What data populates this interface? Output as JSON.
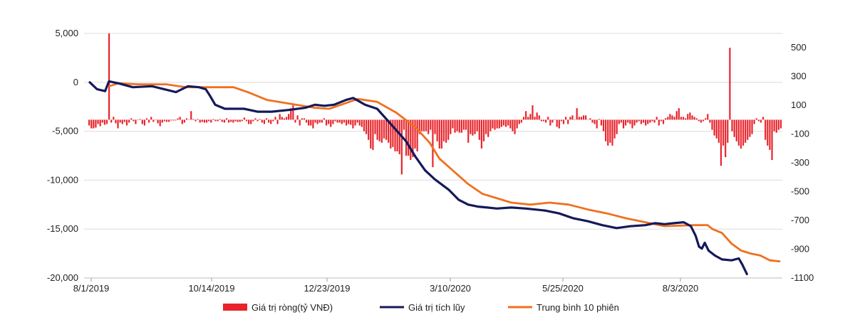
{
  "chart_data": {
    "type": "bar+line",
    "x_tick_labels": [
      "8/1/2019",
      "10/14/2019",
      "12/23/2019",
      "3/10/2020",
      "5/25/2020",
      "8/3/2020"
    ],
    "left_axis": {
      "ticks": [
        "5,000",
        "0",
        "-5,000",
        "-10,000",
        "-15,000",
        "-20,000"
      ],
      "ylim": [
        -20000,
        5000
      ]
    },
    "right_axis": {
      "ticks": [
        "500",
        "300",
        "100",
        "-100",
        "-300",
        "-500",
        "-700",
        "-900",
        "-1100"
      ],
      "ylim": [
        -1100,
        600
      ]
    },
    "grid": true,
    "legend_position": "bottom",
    "colors": {
      "net_bars": "#e8232a",
      "cumulative": "#14195a",
      "moving_average": "#f0701e"
    },
    "series": [
      {
        "name": "Giá trị ròng(tỷ VNĐ)",
        "kind": "bar",
        "axis": "right",
        "values": [
          -40,
          -60,
          -60,
          -55,
          -30,
          -45,
          -20,
          -35,
          -30,
          600,
          -20,
          20,
          -25,
          -60,
          -20,
          -30,
          -15,
          -40,
          -20,
          10,
          -10,
          -30,
          0,
          5,
          -30,
          -40,
          10,
          -20,
          20,
          -15,
          0,
          -25,
          -45,
          -20,
          -10,
          -15,
          -15,
          -5,
          -5,
          -5,
          10,
          20,
          -30,
          -20,
          10,
          0,
          60,
          5,
          -10,
          5,
          -20,
          -15,
          -20,
          -20,
          -10,
          -20,
          5,
          -10,
          -10,
          5,
          -15,
          -20,
          10,
          -20,
          -15,
          -20,
          -10,
          -15,
          -15,
          -10,
          15,
          -10,
          -30,
          -30,
          -10,
          10,
          -10,
          5,
          -20,
          -30,
          10,
          -20,
          -30,
          -10,
          20,
          -30,
          40,
          20,
          10,
          20,
          40,
          80,
          100,
          -20,
          30,
          -40,
          10,
          10,
          -20,
          -40,
          -40,
          -60,
          -20,
          -30,
          -20,
          -20,
          10,
          -40,
          -30,
          -50,
          -30,
          -10,
          -20,
          -20,
          -30,
          -20,
          -40,
          -30,
          -35,
          -60,
          -40,
          -20,
          -40,
          -50,
          -80,
          -100,
          -140,
          -200,
          -210,
          -100,
          -140,
          -150,
          -160,
          -130,
          -140,
          -160,
          -200,
          -190,
          -220,
          -220,
          -240,
          -380,
          -70,
          -250,
          -250,
          -280,
          -260,
          -200,
          -220,
          -100,
          -80,
          -80,
          -80,
          -100,
          -70,
          -330,
          -100,
          -150,
          -200,
          -200,
          -150,
          -160,
          -140,
          -100,
          -60,
          -90,
          -80,
          -90,
          -90,
          -70,
          -70,
          -160,
          -100,
          -110,
          -100,
          -80,
          -140,
          -200,
          -150,
          -100,
          -120,
          -80,
          -60,
          -70,
          -60,
          -60,
          -50,
          -40,
          -50,
          -40,
          -60,
          -80,
          -100,
          -60,
          -30,
          -20,
          20,
          60,
          20,
          40,
          100,
          20,
          50,
          30,
          -10,
          -10,
          -20,
          20,
          -40,
          -20,
          0,
          -50,
          -60,
          -10,
          -30,
          20,
          -30,
          20,
          30,
          0,
          80,
          20,
          20,
          30,
          30,
          0,
          10,
          -20,
          -30,
          -60,
          5,
          -40,
          -80,
          -150,
          -180,
          -160,
          -180,
          -130,
          -100,
          -30,
          -20,
          -60,
          -40,
          -20,
          -30,
          -60,
          -40,
          -20,
          -10,
          -30,
          -20,
          -40,
          -30,
          -20,
          -10,
          -20,
          20,
          -40,
          -10,
          -30,
          10,
          20,
          40,
          30,
          20,
          60,
          80,
          20,
          20,
          10,
          40,
          50,
          30,
          20,
          10,
          -10,
          -20,
          -10,
          10,
          40,
          -20,
          -70,
          -110,
          -130,
          -160,
          -320,
          -180,
          -260,
          -160,
          500,
          -80,
          -120,
          -150,
          -180,
          -200,
          -180,
          -160,
          -140,
          -120,
          -100,
          -30,
          10,
          -10,
          -20,
          20,
          -140,
          -180,
          -210,
          -280,
          -80,
          -90,
          -70,
          -60
        ]
      },
      {
        "name": "Giá trị tích lũy",
        "kind": "line",
        "axis": "left",
        "points": [
          [
            0,
            0
          ],
          [
            15,
            -700
          ],
          [
            32,
            -900
          ],
          [
            40,
            100
          ],
          [
            60,
            -100
          ],
          [
            90,
            -500
          ],
          [
            130,
            -400
          ],
          [
            155,
            -700
          ],
          [
            180,
            -1000
          ],
          [
            205,
            -400
          ],
          [
            228,
            -500
          ],
          [
            242,
            -700
          ],
          [
            250,
            -1300
          ],
          [
            262,
            -2300
          ],
          [
            282,
            -2700
          ],
          [
            322,
            -2700
          ],
          [
            350,
            -3000
          ],
          [
            380,
            -3000
          ],
          [
            420,
            -2800
          ],
          [
            450,
            -2600
          ],
          [
            470,
            -2300
          ],
          [
            490,
            -2400
          ],
          [
            510,
            -2300
          ],
          [
            535,
            -1800
          ],
          [
            550,
            -1600
          ],
          [
            575,
            -2300
          ],
          [
            600,
            -2700
          ],
          [
            620,
            -3800
          ],
          [
            640,
            -4900
          ],
          [
            660,
            -6000
          ],
          [
            680,
            -7600
          ],
          [
            700,
            -9000
          ],
          [
            720,
            -9900
          ],
          [
            750,
            -11000
          ],
          [
            770,
            -12000
          ],
          [
            790,
            -12500
          ],
          [
            810,
            -12700
          ],
          [
            830,
            -12800
          ],
          [
            850,
            -12900
          ],
          [
            880,
            -12800
          ],
          [
            910,
            -12900
          ],
          [
            950,
            -13100
          ],
          [
            980,
            -13400
          ],
          [
            1010,
            -13900
          ],
          [
            1040,
            -14200
          ],
          [
            1070,
            -14600
          ],
          [
            1100,
            -14900
          ],
          [
            1130,
            -14700
          ],
          [
            1160,
            -14600
          ],
          [
            1180,
            -14400
          ],
          [
            1200,
            -14500
          ],
          [
            1220,
            -14400
          ],
          [
            1240,
            -14300
          ],
          [
            1255,
            -14700
          ],
          [
            1265,
            -15700
          ],
          [
            1272,
            -16800
          ],
          [
            1278,
            -17000
          ],
          [
            1284,
            -16400
          ],
          [
            1292,
            -17200
          ],
          [
            1305,
            -17700
          ],
          [
            1320,
            -18100
          ],
          [
            1340,
            -18200
          ],
          [
            1355,
            -18000
          ],
          [
            1362,
            -18600
          ],
          [
            1372,
            -19600
          ]
        ]
      },
      {
        "name": "Trung bình 10 phiên",
        "kind": "line",
        "axis": "left",
        "points": [
          [
            40,
            -400
          ],
          [
            60,
            -100
          ],
          [
            100,
            -200
          ],
          [
            160,
            -200
          ],
          [
            200,
            -500
          ],
          [
            240,
            -500
          ],
          [
            300,
            -500
          ],
          [
            330,
            -1000
          ],
          [
            370,
            -1800
          ],
          [
            420,
            -2200
          ],
          [
            470,
            -2600
          ],
          [
            500,
            -2700
          ],
          [
            530,
            -2200
          ],
          [
            560,
            -1700
          ],
          [
            600,
            -2000
          ],
          [
            640,
            -3100
          ],
          [
            680,
            -4600
          ],
          [
            710,
            -6200
          ],
          [
            730,
            -7800
          ],
          [
            760,
            -9100
          ],
          [
            790,
            -10400
          ],
          [
            820,
            -11400
          ],
          [
            860,
            -12000
          ],
          [
            880,
            -12300
          ],
          [
            920,
            -12500
          ],
          [
            960,
            -12300
          ],
          [
            1000,
            -12500
          ],
          [
            1040,
            -13000
          ],
          [
            1080,
            -13400
          ],
          [
            1120,
            -13900
          ],
          [
            1160,
            -14300
          ],
          [
            1200,
            -14700
          ],
          [
            1260,
            -14600
          ],
          [
            1290,
            -14600
          ],
          [
            1300,
            -15000
          ],
          [
            1320,
            -15400
          ],
          [
            1340,
            -16500
          ],
          [
            1360,
            -17200
          ],
          [
            1380,
            -17500
          ],
          [
            1400,
            -17700
          ],
          [
            1420,
            -18200
          ],
          [
            1440,
            -18300
          ]
        ]
      }
    ]
  }
}
